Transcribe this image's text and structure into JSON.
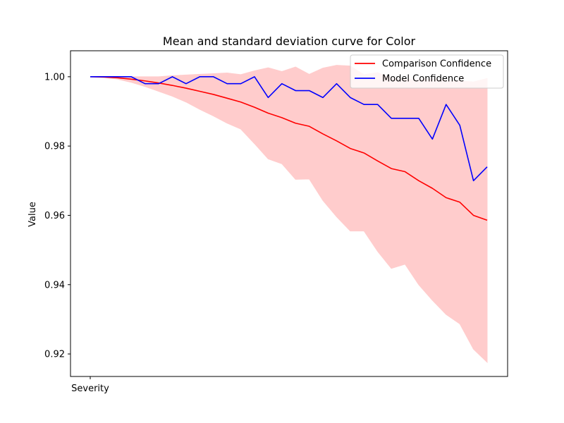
{
  "chart_data": {
    "type": "line",
    "title": "Mean and standard deviation curve for Color",
    "xlabel": "",
    "ylabel": "Value",
    "x_tick_labels": [
      "Severity"
    ],
    "ylim": [
      0.9135,
      1.0075
    ],
    "y_ticks": [
      0.92,
      0.94,
      0.96,
      0.98,
      1.0
    ],
    "y_tick_labels": [
      "0.92",
      "0.94",
      "0.96",
      "0.98",
      "1.00"
    ],
    "grid": false,
    "legend_position": "top-right",
    "x": [
      1,
      2,
      3,
      4,
      5,
      6,
      7,
      8,
      9,
      10,
      11,
      12,
      13,
      14,
      15,
      16,
      17,
      18,
      19,
      20,
      21,
      22,
      23,
      24,
      25,
      26,
      27,
      28,
      29,
      30
    ],
    "series": [
      {
        "name": "Comparison Confidence",
        "color": "#ff0000",
        "values": [
          1.0,
          0.9999,
          0.9997,
          0.9993,
          0.9988,
          0.9982,
          0.9975,
          0.9967,
          0.9958,
          0.9949,
          0.9938,
          0.9927,
          0.9912,
          0.9895,
          0.9882,
          0.9866,
          0.9857,
          0.9835,
          0.9815,
          0.9793,
          0.978,
          0.9757,
          0.9735,
          0.9726,
          0.97,
          0.9678,
          0.9651,
          0.9638,
          0.96,
          0.9586
        ]
      },
      {
        "name": "Model Confidence",
        "color": "#0000ff",
        "values": [
          1.0,
          1.0,
          1.0,
          1.0,
          0.998,
          0.998,
          1.0,
          0.998,
          1.0,
          1.0,
          0.998,
          0.998,
          1.0,
          0.994,
          0.998,
          0.996,
          0.996,
          0.994,
          0.998,
          0.994,
          0.992,
          0.992,
          0.988,
          0.988,
          0.988,
          0.982,
          0.992,
          0.986,
          0.97,
          0.974
        ]
      }
    ],
    "band": {
      "color": "#ffcccc",
      "upper": [
        1.0,
        1.0,
        1.0,
        1.0,
        1.0,
        1.0,
        1.0003,
        1.0005,
        1.0007,
        1.0009,
        1.0011,
        1.0006,
        1.0017,
        1.0026,
        1.0015,
        1.0028,
        1.0007,
        1.0025,
        1.0033,
        1.0031,
        1.0006,
        1.0012,
        0.9996,
        0.9991,
        0.9992,
        0.9993,
        0.999,
        0.9988,
        0.9985,
        0.9995
      ],
      "lower": [
        1.0,
        0.9998,
        0.9993,
        0.9984,
        0.9972,
        0.9958,
        0.9944,
        0.9927,
        0.9906,
        0.9887,
        0.9866,
        0.9849,
        0.9807,
        0.9763,
        0.9749,
        0.9704,
        0.9705,
        0.9643,
        0.9596,
        0.9555,
        0.9555,
        0.9496,
        0.9447,
        0.9459,
        0.94,
        0.9355,
        0.9314,
        0.9287,
        0.9214,
        0.9176
      ]
    }
  }
}
